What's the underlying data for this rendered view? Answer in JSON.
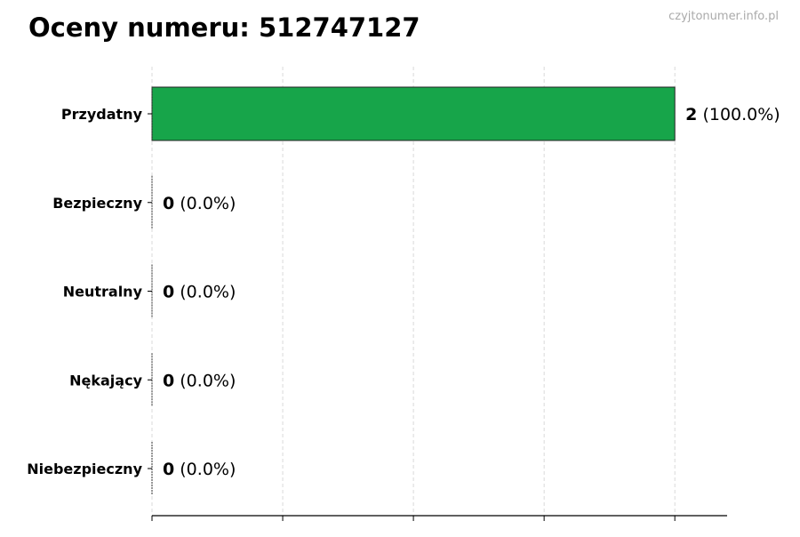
{
  "watermark": "czyjtonumer.info.pl",
  "chart_data": {
    "type": "bar",
    "orientation": "horizontal",
    "title": "Oceny numeru: 512747127",
    "categories": [
      "Przydatny",
      "Bezpieczny",
      "Neutralny",
      "Nękający",
      "Niebezpieczny"
    ],
    "values": [
      2,
      0,
      0,
      0,
      0
    ],
    "value_labels": [
      "2",
      "0",
      "0",
      "0",
      "0"
    ],
    "percent_labels": [
      "(100.0%)",
      "(0.0%)",
      "(0.0%)",
      "(0.0%)",
      "(0.0%)"
    ],
    "bar_color": "#17a54a",
    "xlim": [
      0,
      2.2
    ],
    "xticks": [
      0,
      0.5,
      1,
      1.5,
      2
    ],
    "xtick_labels_shown": false,
    "grid": "vertical dashed",
    "xlabel": "",
    "ylabel": ""
  }
}
